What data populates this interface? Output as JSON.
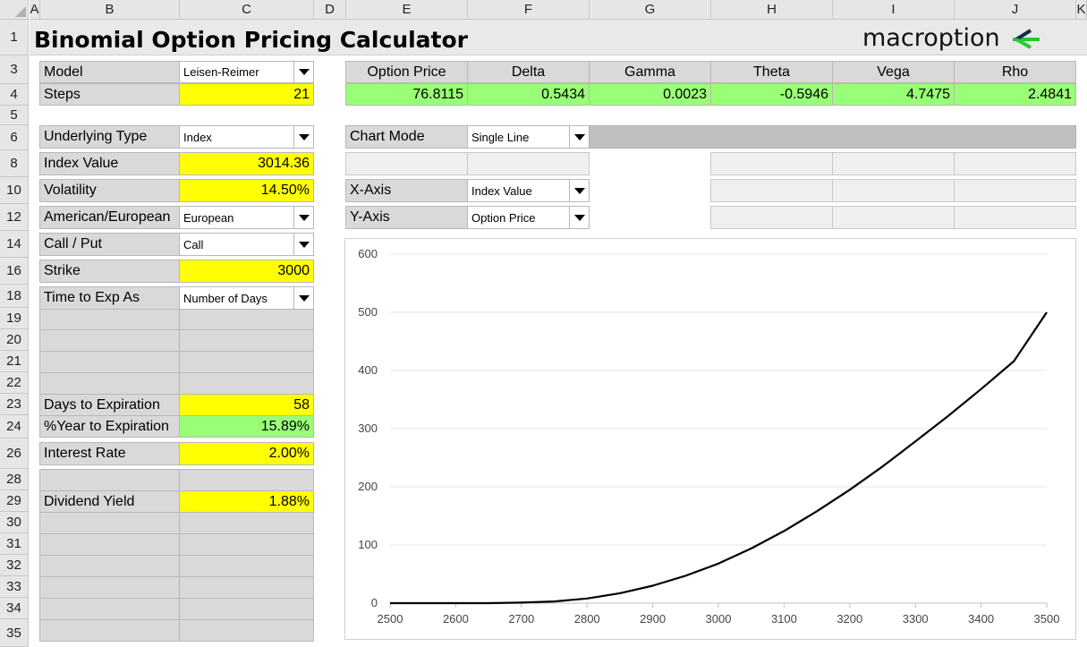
{
  "columns": [
    "A",
    "B",
    "C",
    "D",
    "E",
    "F",
    "G",
    "H",
    "I",
    "J",
    "K"
  ],
  "rows": [
    "1",
    "3",
    "4",
    "5",
    "6",
    "8",
    "10",
    "12",
    "14",
    "16",
    "18",
    "19",
    "20",
    "21",
    "22",
    "23",
    "24",
    "26",
    "28",
    "29",
    "30",
    "31",
    "32",
    "33",
    "34",
    "35"
  ],
  "title": "Binomial Option Pricing Calculator",
  "logo": "macroption",
  "inputs": {
    "model": {
      "label": "Model",
      "value": "Leisen-Reimer"
    },
    "steps": {
      "label": "Steps",
      "value": "21"
    },
    "underlying_type": {
      "label": "Underlying Type",
      "value": "Index"
    },
    "index_value": {
      "label": "Index Value",
      "value": "3014.36"
    },
    "volatility": {
      "label": "Volatility",
      "value": "14.50%"
    },
    "american_european": {
      "label": "American/European",
      "value": "European"
    },
    "call_put": {
      "label": "Call / Put",
      "value": "Call"
    },
    "strike": {
      "label": "Strike",
      "value": "3000"
    },
    "time_to_exp_as": {
      "label": "Time to Exp As",
      "value": "Number of Days"
    },
    "days_to_expiration": {
      "label": "Days to Expiration",
      "value": "58"
    },
    "year_to_expiration": {
      "label": "%Year to Expiration",
      "value": "15.89%"
    },
    "interest_rate": {
      "label": "Interest Rate",
      "value": "2.00%"
    },
    "dividend_yield": {
      "label": "Dividend Yield",
      "value": "1.88%"
    }
  },
  "results": {
    "headers": [
      "Option Price",
      "Delta",
      "Gamma",
      "Theta",
      "Vega",
      "Rho"
    ],
    "values": [
      "76.8115",
      "0.5434",
      "0.0023",
      "-0.5946",
      "4.7475",
      "2.4841"
    ]
  },
  "chart_settings": {
    "chart_mode": {
      "label": "Chart Mode",
      "value": "Single Line"
    },
    "x_axis": {
      "label": "X-Axis",
      "value": "Index Value"
    },
    "y_axis": {
      "label": "Y-Axis",
      "value": "Option Price"
    }
  },
  "colors": {
    "input_yellow": "#ffff00",
    "result_green": "#99ff77",
    "label_gray": "#d9d9d9",
    "logo_green": "#22cc33",
    "logo_navy": "#1a2a4a"
  },
  "chart_data": {
    "type": "line",
    "xlim": [
      2500,
      3500
    ],
    "ylim": [
      0,
      600
    ],
    "xticks": [
      2500,
      2600,
      2700,
      2800,
      2900,
      3000,
      3100,
      3200,
      3300,
      3400,
      3500
    ],
    "yticks": [
      0,
      100,
      200,
      300,
      400,
      500,
      600
    ],
    "x": [
      2500,
      2550,
      2600,
      2650,
      2700,
      2750,
      2800,
      2850,
      2900,
      2950,
      3000,
      3050,
      3100,
      3150,
      3200,
      3250,
      3300,
      3350,
      3400,
      3450,
      3500
    ],
    "y": [
      0,
      0,
      0,
      0,
      1,
      3,
      8,
      17,
      30,
      47,
      68,
      94,
      124,
      158,
      195,
      235,
      278,
      322,
      368,
      416,
      500
    ]
  }
}
